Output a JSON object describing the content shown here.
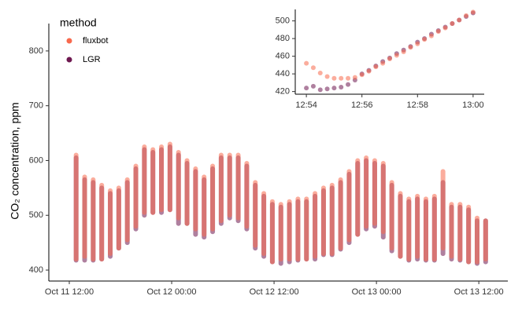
{
  "chart_data": [
    {
      "type": "range",
      "y_label": "CO₂ concentration, ppm",
      "legend_title": "method",
      "legend": "top-left",
      "xlim": [
        9.6,
        63.4
      ],
      "ylim": [
        380,
        850
      ],
      "xticks": [
        {
          "value": 12,
          "label": "Oct 11 12:00"
        },
        {
          "value": 24,
          "label": "Oct 12 00:00"
        },
        {
          "value": 36,
          "label": "Oct 12 12:00"
        },
        {
          "value": 48,
          "label": "Oct 13 00:00"
        },
        {
          "value": 60,
          "label": "Oct 13 12:00"
        }
      ],
      "yticks": [
        400,
        500,
        600,
        700,
        800
      ],
      "x": [
        12.8,
        13.8,
        14.8,
        15.8,
        16.8,
        17.8,
        18.8,
        19.8,
        20.8,
        21.8,
        22.8,
        23.8,
        24.8,
        25.8,
        26.8,
        27.8,
        28.8,
        29.8,
        30.8,
        31.8,
        32.8,
        33.8,
        34.8,
        35.8,
        36.8,
        37.8,
        38.8,
        39.8,
        40.8,
        41.8,
        42.8,
        43.8,
        44.8,
        45.8,
        46.8,
        47.8,
        48.8,
        49.8,
        50.8,
        51.8,
        52.8,
        53.8,
        54.8,
        55.8,
        56.8,
        57.8,
        58.8,
        59.8,
        60.8
      ],
      "series": [
        {
          "name": "fluxbot",
          "color": "#f8694d",
          "high": [
            610,
            570,
            565,
            555,
            545,
            550,
            565,
            590,
            625,
            620,
            625,
            630,
            615,
            600,
            585,
            570,
            590,
            610,
            610,
            610,
            595,
            560,
            540,
            525,
            520,
            525,
            530,
            530,
            540,
            550,
            555,
            565,
            580,
            600,
            605,
            600,
            595,
            560,
            540,
            530,
            535,
            530,
            535,
            580,
            520,
            520,
            515,
            495,
            490
          ],
          "low": [
            420,
            425,
            420,
            420,
            430,
            440,
            455,
            480,
            505,
            505,
            510,
            510,
            495,
            485,
            475,
            465,
            475,
            490,
            500,
            495,
            480,
            445,
            430,
            415,
            420,
            420,
            420,
            420,
            425,
            430,
            430,
            440,
            455,
            465,
            480,
            485,
            470,
            440,
            425,
            420,
            425,
            420,
            420,
            440,
            425,
            420,
            415,
            415,
            420
          ]
        },
        {
          "name": "LGR",
          "color": "#6e1850",
          "high": [
            605,
            565,
            560,
            550,
            540,
            545,
            560,
            585,
            620,
            615,
            620,
            625,
            610,
            595,
            580,
            565,
            585,
            605,
            605,
            605,
            590,
            555,
            535,
            520,
            515,
            520,
            525,
            525,
            535,
            545,
            550,
            560,
            575,
            595,
            600,
            595,
            590,
            555,
            535,
            525,
            530,
            525,
            530,
            560,
            515,
            515,
            510,
            490,
            490
          ],
          "low": [
            418,
            418,
            418,
            420,
            425,
            440,
            450,
            475,
            500,
            505,
            505,
            510,
            485,
            485,
            465,
            460,
            470,
            485,
            495,
            490,
            475,
            440,
            425,
            415,
            412,
            415,
            418,
            420,
            420,
            428,
            428,
            438,
            450,
            465,
            475,
            480,
            460,
            435,
            425,
            418,
            420,
            418,
            418,
            430,
            420,
            418,
            415,
            412,
            415
          ]
        }
      ]
    },
    {
      "type": "scatter",
      "xlim": [
        53.6,
        60.4
      ],
      "ylim": [
        417,
        513
      ],
      "xticks": [
        {
          "value": 54,
          "label": "12:54"
        },
        {
          "value": 56,
          "label": "12:56"
        },
        {
          "value": 58,
          "label": "12:58"
        },
        {
          "value": 60,
          "label": "13:00"
        }
      ],
      "yticks": [
        420,
        440,
        460,
        480,
        500
      ],
      "x": [
        54,
        54.25,
        54.5,
        54.75,
        55,
        55.25,
        55.5,
        55.75,
        56,
        56.25,
        56.5,
        56.75,
        57,
        57.25,
        57.5,
        57.75,
        58,
        58.25,
        58.5,
        58.75,
        59,
        59.25,
        59.5,
        59.75,
        60
      ],
      "series": [
        {
          "name": "LGR",
          "color": "#6e1850",
          "values": [
            424,
            426,
            422,
            423,
            424,
            425,
            428,
            433,
            440,
            444,
            449,
            454,
            458,
            463,
            467,
            471,
            476,
            480,
            485,
            489,
            493,
            497,
            501,
            505,
            509
          ]
        },
        {
          "name": "fluxbot",
          "color": "#f8694d",
          "values": [
            452,
            447,
            441,
            437,
            435,
            435,
            435,
            436,
            439,
            443,
            448,
            452,
            457,
            461,
            465,
            470,
            474,
            479,
            483,
            488,
            492,
            497,
            501,
            506,
            510
          ]
        }
      ]
    }
  ]
}
